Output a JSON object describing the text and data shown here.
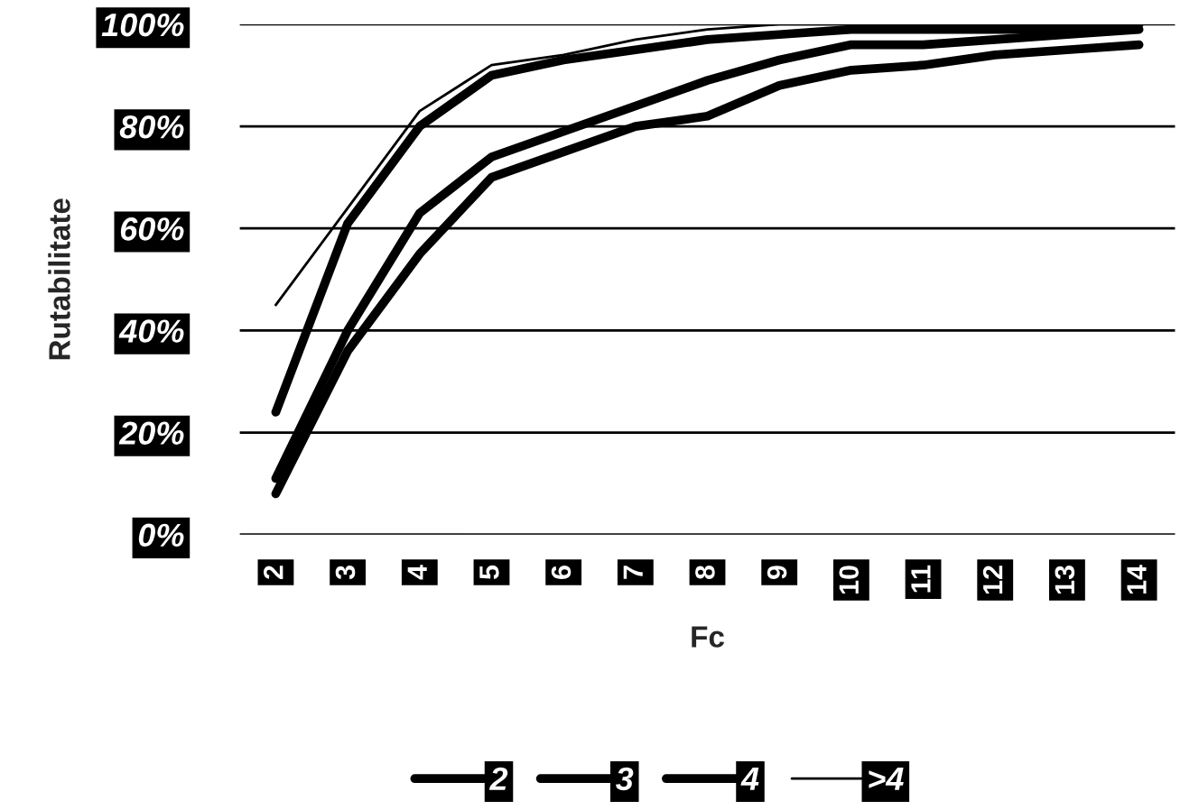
{
  "chart_data": {
    "type": "line",
    "xlabel": "Fc",
    "ylabel": "Rutabilitate",
    "categories": [
      "2",
      "3",
      "4",
      "5",
      "6",
      "7",
      "8",
      "9",
      "10",
      "11",
      "12",
      "13",
      "14"
    ],
    "series": [
      {
        "name": "2",
        "color": "#000000",
        "values": [
          8,
          36,
          55,
          70,
          75,
          80,
          82,
          88,
          91,
          92,
          94,
          95,
          96
        ]
      },
      {
        "name": "3",
        "color": "#000000",
        "values": [
          11,
          40,
          63,
          74,
          79,
          84,
          89,
          93,
          96,
          96,
          97,
          98,
          99
        ]
      },
      {
        "name": "4",
        "color": "#000000",
        "values": [
          24,
          61,
          80,
          90,
          93,
          95,
          97,
          98,
          99,
          99,
          99,
          99,
          100
        ]
      },
      {
        "name": ">4",
        "color": "#000000",
        "values": [
          45,
          64,
          83,
          92,
          94,
          97,
          99,
          100,
          100,
          100,
          100,
          100,
          100
        ]
      }
    ],
    "ylim": [
      0,
      100
    ],
    "yticks": [
      {
        "value": 0,
        "label": "0%"
      },
      {
        "value": 20,
        "label": "20%"
      },
      {
        "value": 40,
        "label": "40%"
      },
      {
        "value": 60,
        "label": "60%"
      },
      {
        "value": 80,
        "label": "80%"
      },
      {
        "value": 100,
        "label": "100%"
      }
    ],
    "grid": "y",
    "legend": "bottom",
    "line_style": "solid",
    "marker": "none"
  }
}
